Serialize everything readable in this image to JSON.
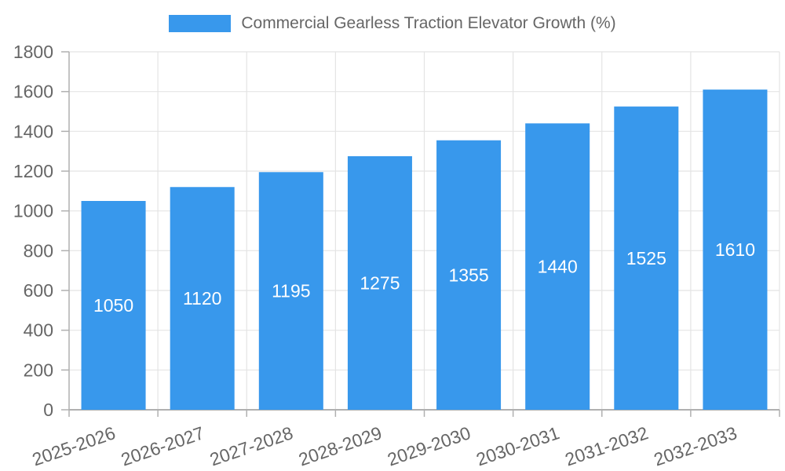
{
  "legend": {
    "label": "Commercial Gearless Traction Elevator Growth (%)"
  },
  "colors": {
    "bar": "#3898EC",
    "grid": "#E4E4E4",
    "axis": "#B0B0B0",
    "tick_text": "#666666",
    "value_text": "#FFFFFF",
    "legend_text": "#666666"
  },
  "chart_data": {
    "type": "bar",
    "title": "Commercial Gearless Traction Elevator Growth (%)",
    "categories": [
      "2025-2026",
      "2026-2027",
      "2027-2028",
      "2028-2029",
      "2029-2030",
      "2030-2031",
      "2031-2032",
      "2032-2033"
    ],
    "values": [
      1050,
      1120,
      1195,
      1275,
      1355,
      1440,
      1525,
      1610
    ],
    "xlabel": "",
    "ylabel": "",
    "ylim": [
      0,
      1800
    ],
    "yticks": [
      0,
      200,
      400,
      600,
      800,
      1000,
      1200,
      1400,
      1600,
      1800
    ],
    "grid": true,
    "legend_position": "top-center",
    "x_tick_rotation": -19,
    "value_labels": "inside-center"
  }
}
